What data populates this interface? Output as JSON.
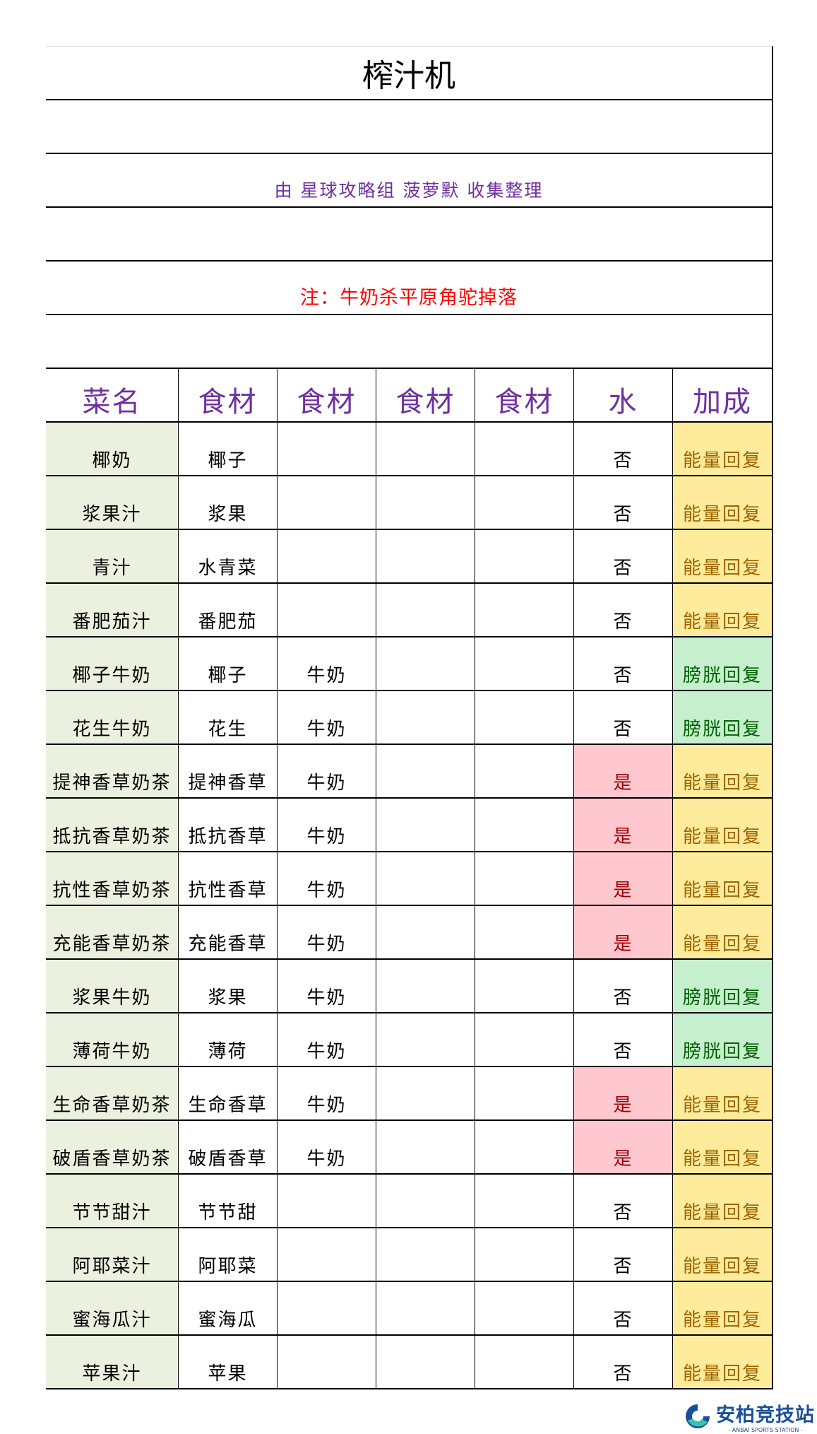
{
  "title": "榨汁机",
  "credit": "由  星球攻略组  菠萝默  收集整理",
  "note": "注：牛奶杀平原角驼掉落",
  "headers": [
    "菜名",
    "食材",
    "食材",
    "食材",
    "食材",
    "水",
    "加成"
  ],
  "colors": {
    "header": "#7030a0",
    "name_bg": "#ebf1de",
    "water_yes_bg": "#ffc7ce",
    "energy_bg": "#ffeb9c",
    "bladder_bg": "#c6efce"
  },
  "rows": [
    {
      "name": "椰奶",
      "ing1": "椰子",
      "ing2": "",
      "ing3": "",
      "ing4": "",
      "water": "否",
      "bonus": "能量回复"
    },
    {
      "name": "浆果汁",
      "ing1": "浆果",
      "ing2": "",
      "ing3": "",
      "ing4": "",
      "water": "否",
      "bonus": "能量回复"
    },
    {
      "name": "青汁",
      "ing1": "水青菜",
      "ing2": "",
      "ing3": "",
      "ing4": "",
      "water": "否",
      "bonus": "能量回复"
    },
    {
      "name": "番肥茄汁",
      "ing1": "番肥茄",
      "ing2": "",
      "ing3": "",
      "ing4": "",
      "water": "否",
      "bonus": "能量回复"
    },
    {
      "name": "椰子牛奶",
      "ing1": "椰子",
      "ing2": "牛奶",
      "ing3": "",
      "ing4": "",
      "water": "否",
      "bonus": "膀胱回复"
    },
    {
      "name": "花生牛奶",
      "ing1": "花生",
      "ing2": "牛奶",
      "ing3": "",
      "ing4": "",
      "water": "否",
      "bonus": "膀胱回复"
    },
    {
      "name": "提神香草奶茶",
      "ing1": "提神香草",
      "ing2": "牛奶",
      "ing3": "",
      "ing4": "",
      "water": "是",
      "bonus": "能量回复"
    },
    {
      "name": "抵抗香草奶茶",
      "ing1": "抵抗香草",
      "ing2": "牛奶",
      "ing3": "",
      "ing4": "",
      "water": "是",
      "bonus": "能量回复"
    },
    {
      "name": "抗性香草奶茶",
      "ing1": "抗性香草",
      "ing2": "牛奶",
      "ing3": "",
      "ing4": "",
      "water": "是",
      "bonus": "能量回复"
    },
    {
      "name": "充能香草奶茶",
      "ing1": "充能香草",
      "ing2": "牛奶",
      "ing3": "",
      "ing4": "",
      "water": "是",
      "bonus": "能量回复"
    },
    {
      "name": "浆果牛奶",
      "ing1": "浆果",
      "ing2": "牛奶",
      "ing3": "",
      "ing4": "",
      "water": "否",
      "bonus": "膀胱回复"
    },
    {
      "name": "薄荷牛奶",
      "ing1": "薄荷",
      "ing2": "牛奶",
      "ing3": "",
      "ing4": "",
      "water": "否",
      "bonus": "膀胱回复"
    },
    {
      "name": "生命香草奶茶",
      "ing1": "生命香草",
      "ing2": "牛奶",
      "ing3": "",
      "ing4": "",
      "water": "是",
      "bonus": "能量回复"
    },
    {
      "name": "破盾香草奶茶",
      "ing1": "破盾香草",
      "ing2": "牛奶",
      "ing3": "",
      "ing4": "",
      "water": "是",
      "bonus": "能量回复"
    },
    {
      "name": "节节甜汁",
      "ing1": "节节甜",
      "ing2": "",
      "ing3": "",
      "ing4": "",
      "water": "否",
      "bonus": "能量回复"
    },
    {
      "name": "阿耶菜汁",
      "ing1": "阿耶菜",
      "ing2": "",
      "ing3": "",
      "ing4": "",
      "water": "否",
      "bonus": "能量回复"
    },
    {
      "name": "蜜海瓜汁",
      "ing1": "蜜海瓜",
      "ing2": "",
      "ing3": "",
      "ing4": "",
      "water": "否",
      "bonus": "能量回复"
    },
    {
      "name": "苹果汁",
      "ing1": "苹果",
      "ing2": "",
      "ing3": "",
      "ing4": "",
      "water": "否",
      "bonus": "能量回复"
    }
  ],
  "watermark": {
    "name": "安柏竞技站",
    "subtitle": "- ANBAI SPORTS STATION -"
  }
}
